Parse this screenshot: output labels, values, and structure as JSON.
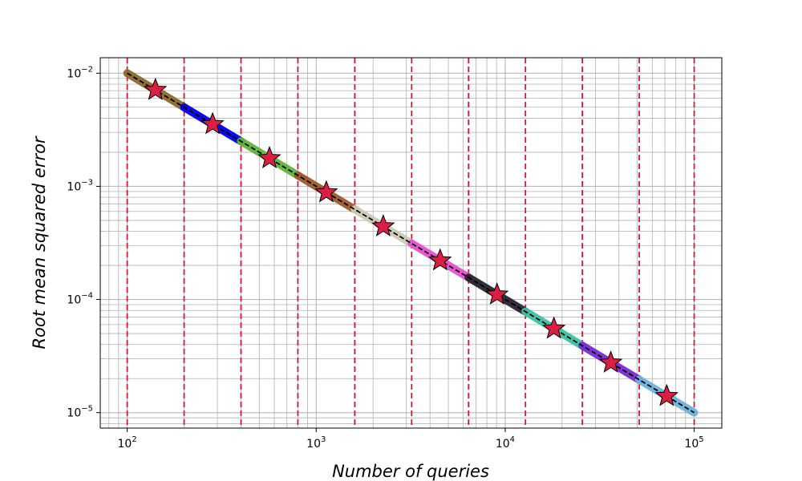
{
  "chart_data": {
    "type": "line",
    "xlabel": "Number of queries",
    "ylabel": "Root mean squared error",
    "x_scale": "log",
    "y_scale": "log",
    "xlim": [
      72,
      140000
    ],
    "ylim": [
      7.3e-06,
      0.0137
    ],
    "grid": "major and minor",
    "x_ticks": [
      {
        "value": 100,
        "base": "10",
        "exp": "2"
      },
      {
        "value": 1000,
        "base": "10",
        "exp": "3"
      },
      {
        "value": 10000,
        "base": "10",
        "exp": "4"
      },
      {
        "value": 100000,
        "base": "10",
        "exp": "5"
      }
    ],
    "y_ticks": [
      {
        "value": 0.01,
        "base": "10",
        "exp": "−2"
      },
      {
        "value": 0.001,
        "base": "10",
        "exp": "−3"
      },
      {
        "value": 0.0001,
        "base": "10",
        "exp": "−4"
      },
      {
        "value": 1e-05,
        "base": "10",
        "exp": "−5"
      }
    ],
    "reference_line": {
      "style": "dashed",
      "color": "#000000",
      "x": [
        100,
        100000
      ],
      "y": [
        0.01,
        1e-05
      ]
    },
    "segments": [
      {
        "x": [
          100,
          200
        ],
        "y": [
          0.01,
          0.005
        ],
        "color": "#8B6A2E"
      },
      {
        "x": [
          200,
          400
        ],
        "y": [
          0.005,
          0.0025
        ],
        "color": "#0000EE"
      },
      {
        "x": [
          400,
          800
        ],
        "y": [
          0.0025,
          0.00125
        ],
        "color": "#5FB63A"
      },
      {
        "x": [
          800,
          1600
        ],
        "y": [
          0.00125,
          0.000625
        ],
        "color": "#9C5A2B"
      },
      {
        "x": [
          1600,
          3200
        ],
        "y": [
          0.000625,
          0.0003125
        ],
        "color": "#CDCBB4"
      },
      {
        "x": [
          3200,
          6400
        ],
        "y": [
          0.0003125,
          0.00015625
        ],
        "color": "#E94FD2"
      },
      {
        "x": [
          6400,
          12800
        ],
        "y": [
          0.00015625,
          7.8125e-05
        ],
        "color": "#2A2230"
      },
      {
        "x": [
          12800,
          25600
        ],
        "y": [
          7.8125e-05,
          3.90625e-05
        ],
        "color": "#3CC3A6"
      },
      {
        "x": [
          25600,
          51200
        ],
        "y": [
          3.90625e-05,
          1.953e-05
        ],
        "color": "#7A2BD6"
      },
      {
        "x": [
          51200,
          100000
        ],
        "y": [
          1.953e-05,
          1e-05
        ],
        "color": "#6CB4DA"
      }
    ],
    "vertical_lines": {
      "color": "#DC143C",
      "style": "dashed",
      "x": [
        100,
        200,
        400,
        800,
        1600,
        3200,
        6400,
        12800,
        25600,
        51200,
        100000
      ]
    },
    "markers": {
      "shape": "star",
      "fill": "#DC1E44",
      "edge": "#000000",
      "points": [
        {
          "x": 141,
          "y": 0.0071
        },
        {
          "x": 283,
          "y": 0.00354
        },
        {
          "x": 566,
          "y": 0.00177
        },
        {
          "x": 1131,
          "y": 0.000884
        },
        {
          "x": 2263,
          "y": 0.000442
        },
        {
          "x": 4525,
          "y": 0.000221
        },
        {
          "x": 9051,
          "y": 0.0001105
        },
        {
          "x": 18102,
          "y": 5.52e-05
        },
        {
          "x": 36204,
          "y": 2.76e-05
        },
        {
          "x": 71554,
          "y": 1.4e-05
        }
      ]
    }
  }
}
